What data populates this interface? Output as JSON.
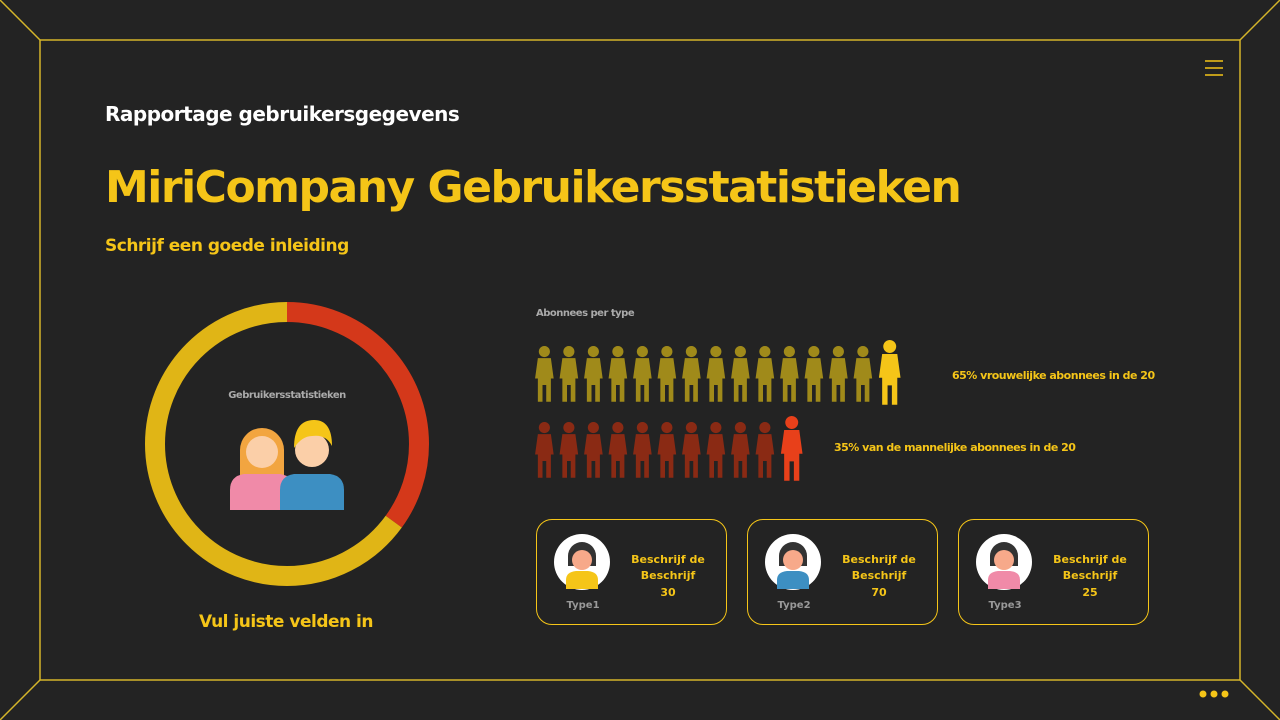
{
  "header": {
    "kicker": "Rapportage gebruikersgegevens",
    "title": "MiriCompany Gebruikersstatistieken",
    "intro": "Schrijf een goede inleiding"
  },
  "donut": {
    "label": "Gebruikersstatistieken",
    "caption": "Vul juiste velden in",
    "segments": [
      {
        "value": 35,
        "color": "#d4381a"
      },
      {
        "value": 65,
        "color": "#e0b516"
      }
    ]
  },
  "pictogram": {
    "title": "Abonnees per type",
    "rows": [
      {
        "icons": 15,
        "label": "65% vrouwelijke abonnees in de 20"
      },
      {
        "icons": 11,
        "label": "35% van de mannelijke abonnees in de 20"
      }
    ]
  },
  "cards": [
    {
      "title": "Beschrijf de Beschrijf",
      "number": "30",
      "type": "Type1"
    },
    {
      "title": "Beschrijf de Beschrijf",
      "number": "70",
      "type": "Type2"
    },
    {
      "title": "Beschrijf de Beschrijf",
      "number": "25",
      "type": "Type3"
    }
  ]
}
